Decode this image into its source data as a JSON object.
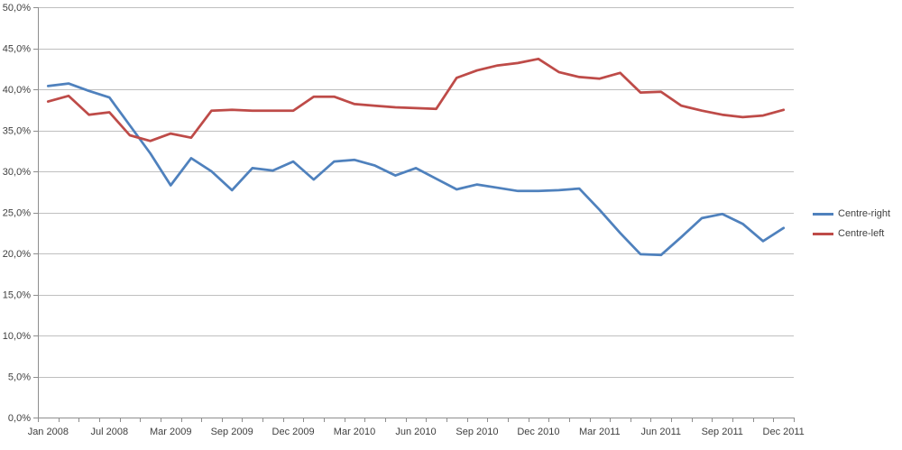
{
  "chart_data": {
    "type": "line",
    "title": "",
    "num_points": 37,
    "x_tick_labels": [
      "Jan 2008",
      "Jul 2008",
      "Mar 2009",
      "Sep 2009",
      "Dec 2009",
      "Mar 2010",
      "Jun 2010",
      "Sep 2010",
      "Dec 2010",
      "Mar 2011",
      "Jun 2011",
      "Sep 2011",
      "Dec 2011"
    ],
    "x_label_every": 3,
    "ylim": [
      0,
      50
    ],
    "y_tick_step": 5,
    "y_tick_labels": [
      "0,0%",
      "5,0%",
      "10,0%",
      "15,0%",
      "20,0%",
      "25,0%",
      "30,0%",
      "35,0%",
      "40,0%",
      "45,0%",
      "50,0%"
    ],
    "grid": true,
    "legend_position": "right",
    "series": [
      {
        "name": "Centre-right",
        "color": "#4F81BD",
        "values": [
          40.4,
          40.7,
          39.8,
          39.0,
          35.6,
          32.2,
          28.3,
          31.6,
          30.0,
          27.7,
          30.4,
          30.1,
          31.2,
          29.0,
          31.2,
          31.4,
          30.7,
          29.5,
          30.4,
          29.1,
          27.8,
          28.4,
          28.0,
          27.6,
          27.6,
          27.7,
          27.9,
          25.3,
          22.5,
          19.9,
          19.8,
          22.0,
          24.3,
          24.8,
          23.6,
          21.5,
          23.1
        ]
      },
      {
        "name": "Centre-left",
        "color": "#BE4B48",
        "values": [
          38.5,
          39.2,
          36.9,
          37.2,
          34.4,
          33.7,
          34.6,
          34.1,
          37.4,
          37.5,
          37.4,
          37.4,
          37.4,
          39.1,
          39.1,
          38.2,
          38.0,
          37.8,
          37.7,
          37.6,
          41.4,
          42.3,
          42.9,
          43.2,
          43.7,
          42.1,
          41.5,
          41.3,
          42.0,
          39.6,
          39.7,
          38.0,
          37.4,
          36.9,
          36.6,
          36.8,
          37.5
        ]
      }
    ],
    "colors": {
      "background": "#FFFFFF",
      "gridline": "#BFBFBF",
      "axis": "#8E8E8E",
      "label": "#3F3F3F"
    }
  }
}
